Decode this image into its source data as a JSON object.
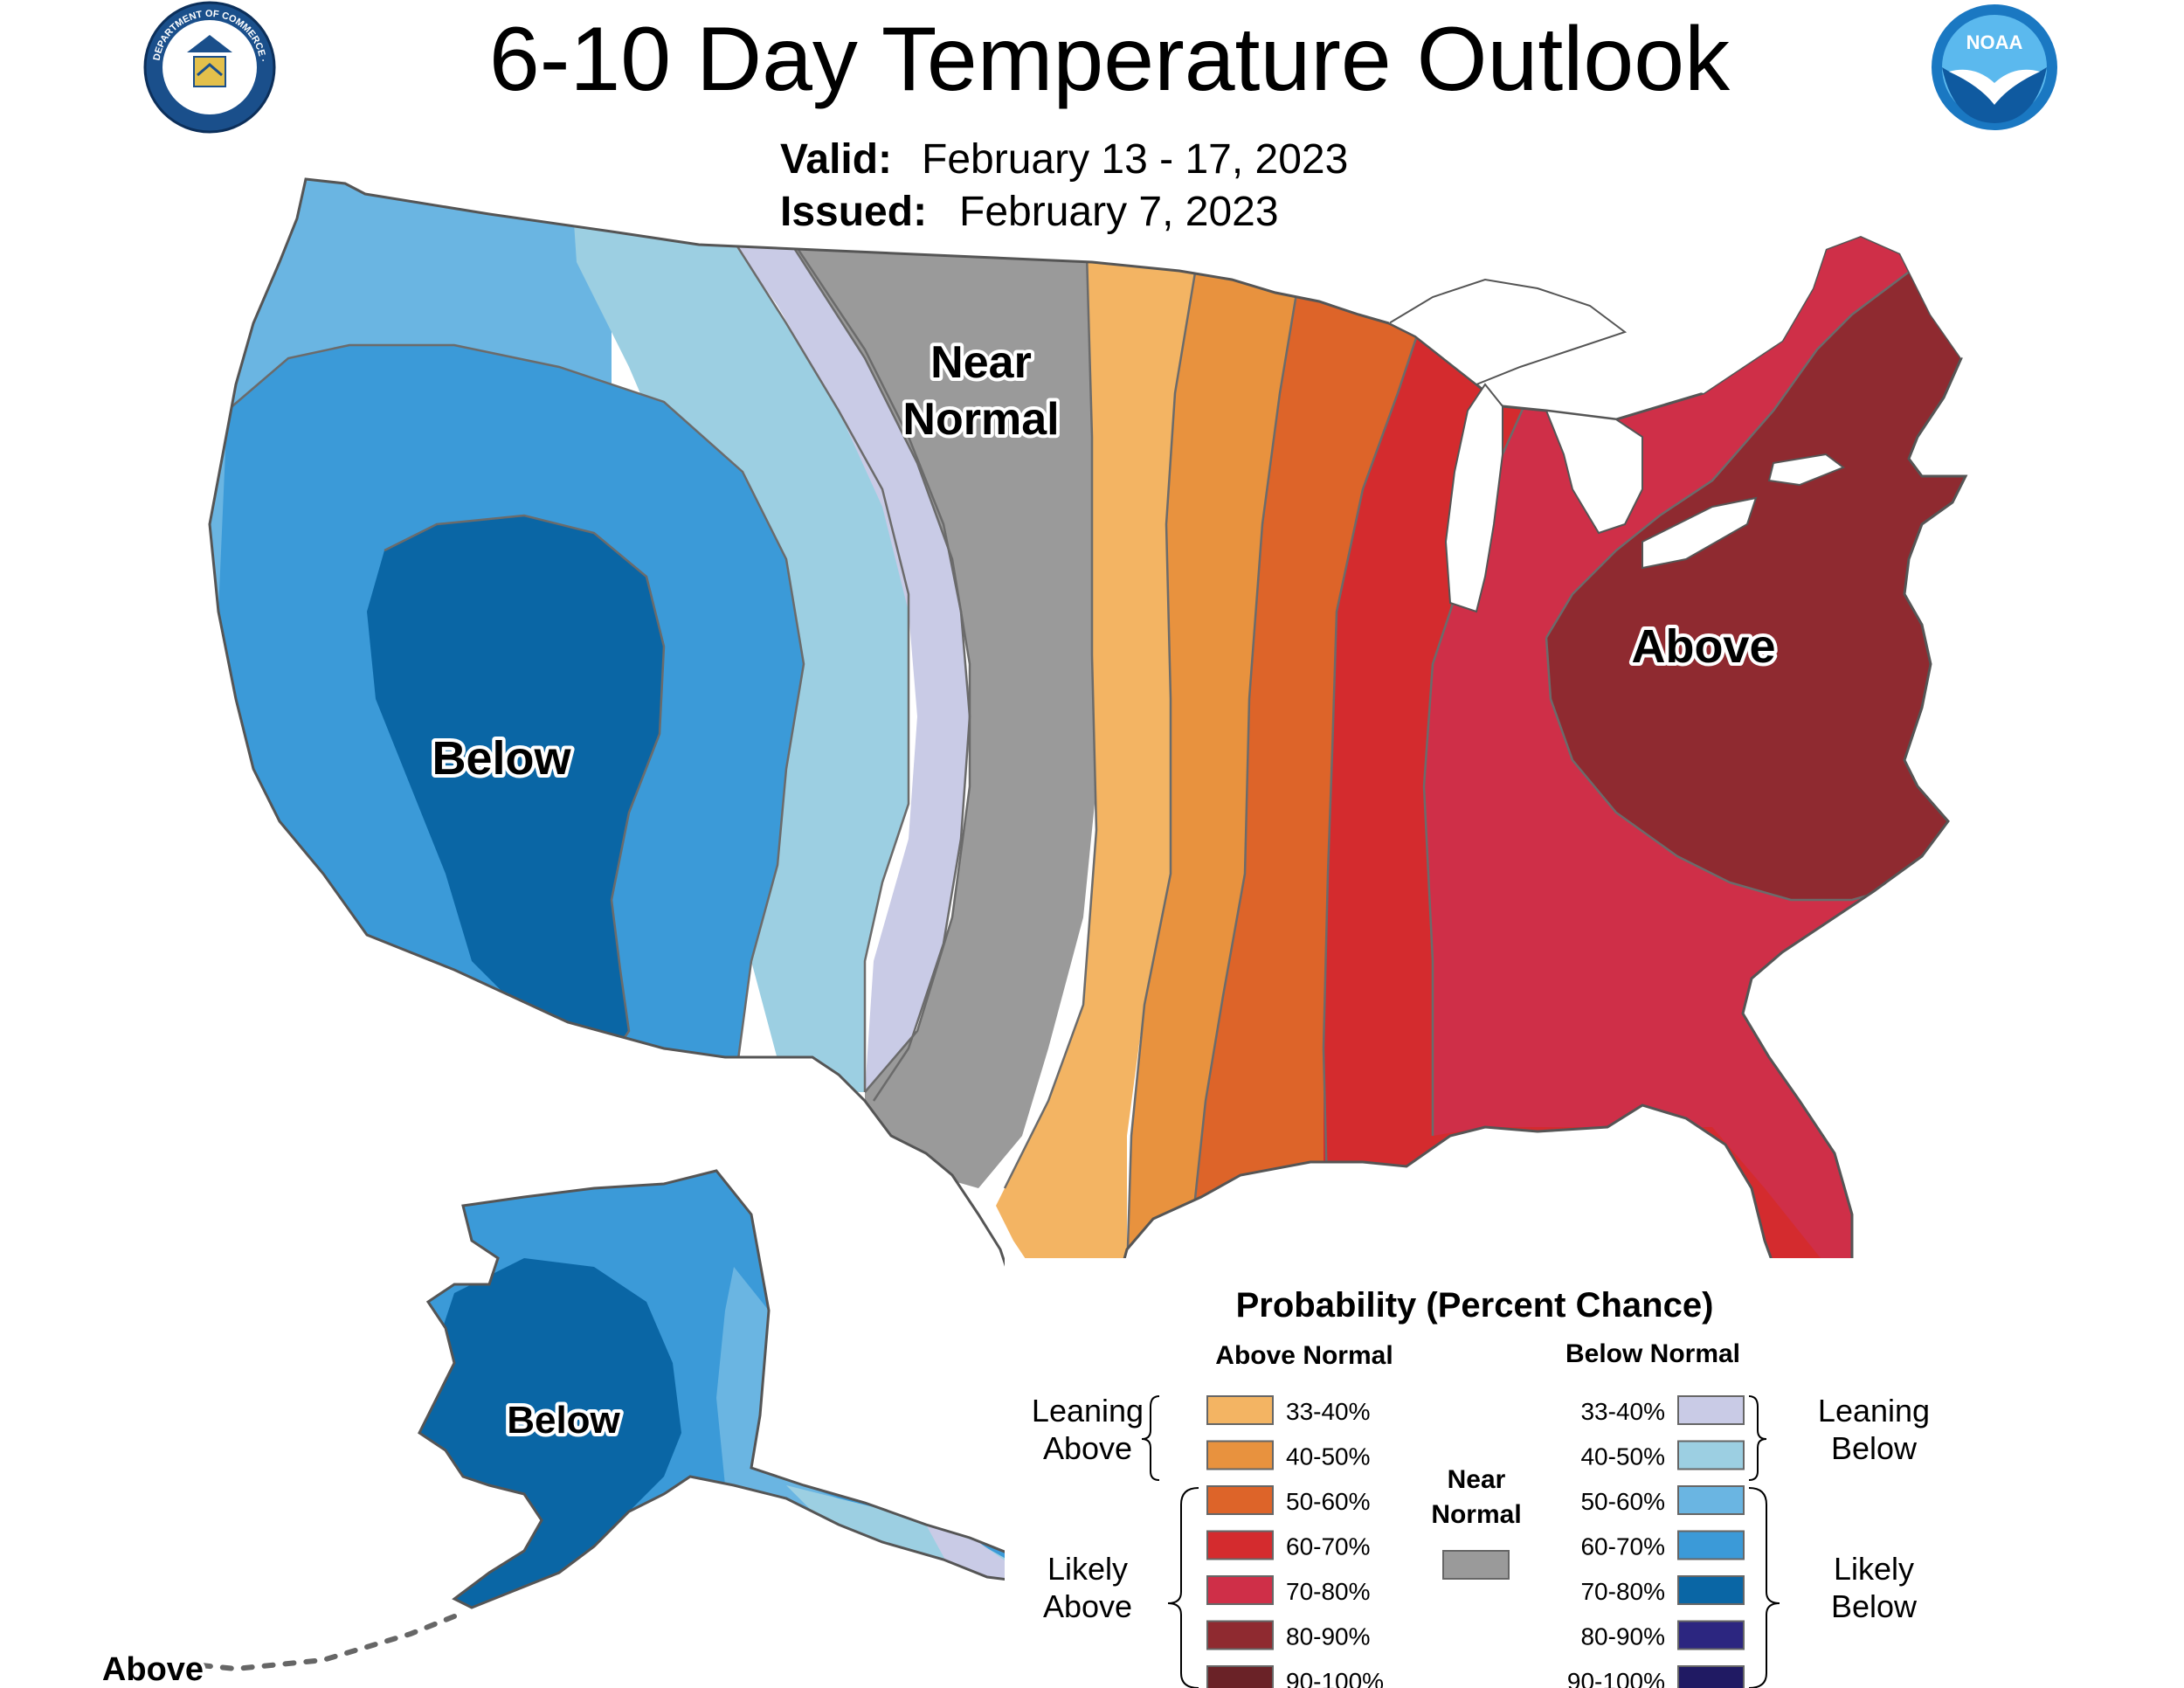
{
  "header": {
    "title": "6-10 Day Temperature Outlook",
    "valid_label": "Valid:",
    "valid_value": "February 13 - 17, 2023",
    "issued_label": "Issued:",
    "issued_value": "February 7, 2023"
  },
  "logos": {
    "left": {
      "name": "department-of-commerce-seal",
      "text": "DEPARTMENT OF COMMERCE · UNITED STATES OF AMERICA"
    },
    "right": {
      "name": "noaa-logo",
      "text": "NOAA"
    }
  },
  "map": {
    "labels": {
      "near_normal_1": "Near",
      "near_normal_2": "Normal",
      "above": "Above",
      "below_west": "Below",
      "below_alaska": "Below",
      "above_bottom": "Above"
    },
    "colors": {
      "above_33_40": "#f3b463",
      "above_40_50": "#e8923e",
      "above_50_60": "#dd6429",
      "above_60_70": "#d42b2e",
      "above_70_80": "#cf2f48",
      "above_80_90": "#8f2a30",
      "near_normal": "#9a9a9a",
      "below_33_40": "#c9cbe6",
      "below_40_50": "#9ccfe2",
      "below_50_60": "#6ab5e2",
      "below_60_70": "#3b9ad8",
      "below_70_80": "#0a66a5",
      "white": "#ffffff"
    }
  },
  "legend": {
    "title": "Probability (Percent Chance)",
    "above_heading": "Above Normal",
    "below_heading": "Below Normal",
    "near_label_1": "Near",
    "near_label_2": "Normal",
    "near_color": "#9a9a9a",
    "leaning_above_1": "Leaning",
    "leaning_above_2": "Above",
    "likely_above_1": "Likely",
    "likely_above_2": "Above",
    "leaning_below_1": "Leaning",
    "leaning_below_2": "Below",
    "likely_below_1": "Likely",
    "likely_below_2": "Below",
    "above_rows": [
      {
        "label": "33-40%",
        "color": "#f3b463"
      },
      {
        "label": "40-50%",
        "color": "#e8923e"
      },
      {
        "label": "50-60%",
        "color": "#dd6429"
      },
      {
        "label": "60-70%",
        "color": "#d42b2e"
      },
      {
        "label": "70-80%",
        "color": "#cf2f48"
      },
      {
        "label": "80-90%",
        "color": "#8f2a30"
      },
      {
        "label": "90-100%",
        "color": "#6a2227"
      }
    ],
    "below_rows": [
      {
        "label": "33-40%",
        "color": "#c9cbe6"
      },
      {
        "label": "40-50%",
        "color": "#9ccfe2"
      },
      {
        "label": "50-60%",
        "color": "#6ab5e2"
      },
      {
        "label": "60-70%",
        "color": "#3b9ad8"
      },
      {
        "label": "70-80%",
        "color": "#0a66a5"
      },
      {
        "label": "80-90%",
        "color": "#2c2680"
      },
      {
        "label": "90-100%",
        "color": "#201a63"
      }
    ]
  }
}
